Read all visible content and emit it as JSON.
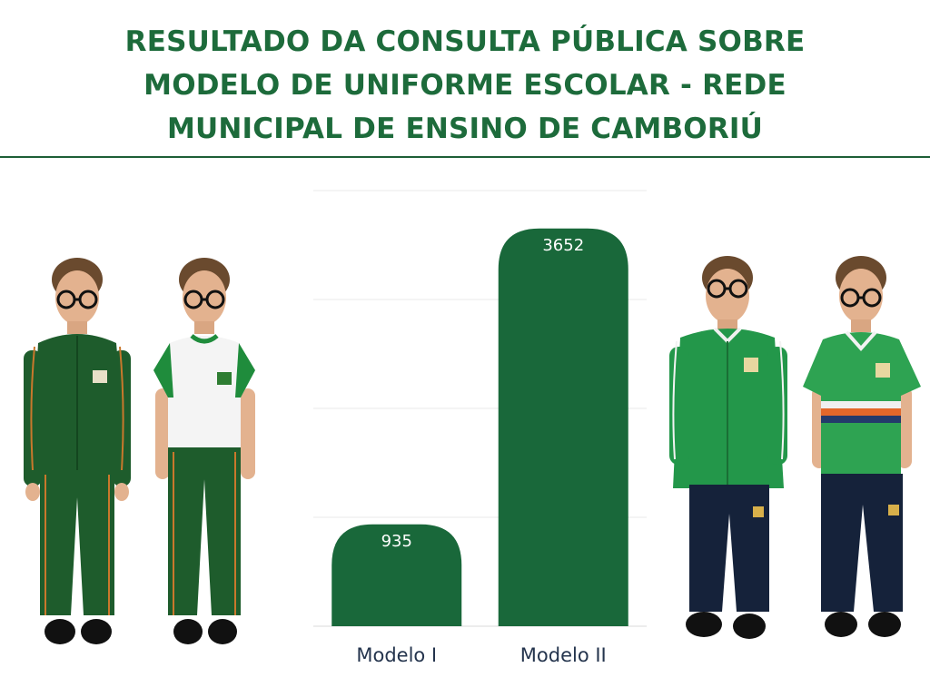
{
  "title_lines": [
    "RESULTADO DA CONSULTA PÚBLICA SOBRE",
    "MODELO DE UNIFORME ESCOLAR - REDE",
    "MUNICIPAL DE ENSINO DE CAMBORIÚ"
  ],
  "colors": {
    "title": "#1d6b3b",
    "bar": "#19683a",
    "rule": "#1d5f36"
  },
  "chart_data": {
    "type": "bar",
    "categories": [
      "Modelo I",
      "Modelo II"
    ],
    "values": [
      935,
      3652
    ],
    "ylim": [
      0,
      4000
    ],
    "grid": true,
    "legend": "none",
    "data_labels": [
      "935",
      "3652"
    ]
  },
  "photos": {
    "left": [
      "modelo-i-jacket-photo",
      "modelo-i-shirt-photo"
    ],
    "right": [
      "modelo-ii-jacket-photo",
      "modelo-ii-shirt-photo"
    ]
  }
}
